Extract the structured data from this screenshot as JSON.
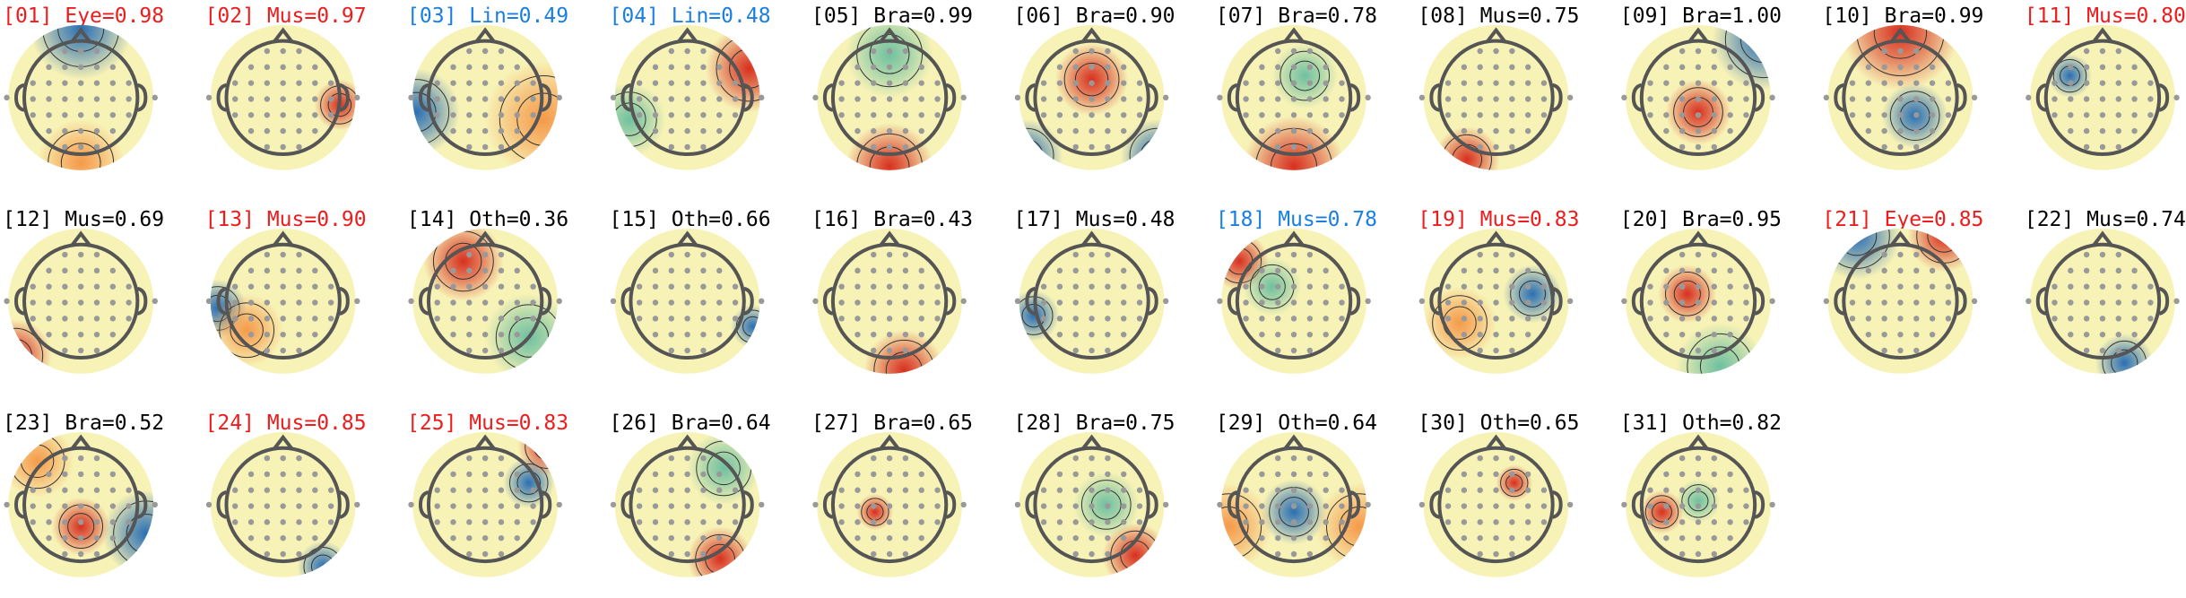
{
  "panels": [
    {
      "title": "[01] Eye=0.98",
      "color": "#ee1c1c"
    },
    {
      "title": "[02] Mus=0.97",
      "color": "#ee1c1c"
    },
    {
      "title": "[03] Lin=0.49",
      "color": "#1a7fe0"
    },
    {
      "title": "[04] Lin=0.48",
      "color": "#1a7fe0"
    },
    {
      "title": "[05] Bra=0.99",
      "color": "#000000"
    },
    {
      "title": "[06] Bra=0.90",
      "color": "#000000"
    },
    {
      "title": "[07] Bra=0.78",
      "color": "#000000"
    },
    {
      "title": "[08] Mus=0.75",
      "color": "#000000"
    },
    {
      "title": "[09] Bra=1.00",
      "color": "#000000"
    },
    {
      "title": "[10] Bra=0.99",
      "color": "#000000"
    },
    {
      "title": "[11] Mus=0.80",
      "color": "#ee1c1c"
    },
    {
      "title": "[12] Mus=0.69",
      "color": "#000000"
    },
    {
      "title": "[13] Mus=0.90",
      "color": "#ee1c1c"
    },
    {
      "title": "[14] Oth=0.36",
      "color": "#000000"
    },
    {
      "title": "[15] Oth=0.66",
      "color": "#000000"
    },
    {
      "title": "[16] Bra=0.43",
      "color": "#000000"
    },
    {
      "title": "[17] Mus=0.48",
      "color": "#000000"
    },
    {
      "title": "[18] Mus=0.78",
      "color": "#1a7fe0"
    },
    {
      "title": "[19] Mus=0.83",
      "color": "#ee1c1c"
    },
    {
      "title": "[20] Bra=0.95",
      "color": "#000000"
    },
    {
      "title": "[21] Eye=0.85",
      "color": "#ee1c1c"
    },
    {
      "title": "[22] Mus=0.74",
      "color": "#000000"
    },
    {
      "title": "[23] Bra=0.52",
      "color": "#000000"
    },
    {
      "title": "[24] Mus=0.85",
      "color": "#ee1c1c"
    },
    {
      "title": "[25] Mus=0.83",
      "color": "#ee1c1c"
    },
    {
      "title": "[26] Bra=0.64",
      "color": "#000000"
    },
    {
      "title": "[27] Bra=0.65",
      "color": "#000000"
    },
    {
      "title": "[28] Bra=0.75",
      "color": "#000000"
    },
    {
      "title": "[29] Oth=0.64",
      "color": "#000000"
    },
    {
      "title": "[30] Oth=0.65",
      "color": "#000000"
    },
    {
      "title": "[31] Oth=0.82",
      "color": "#000000"
    }
  ]
}
